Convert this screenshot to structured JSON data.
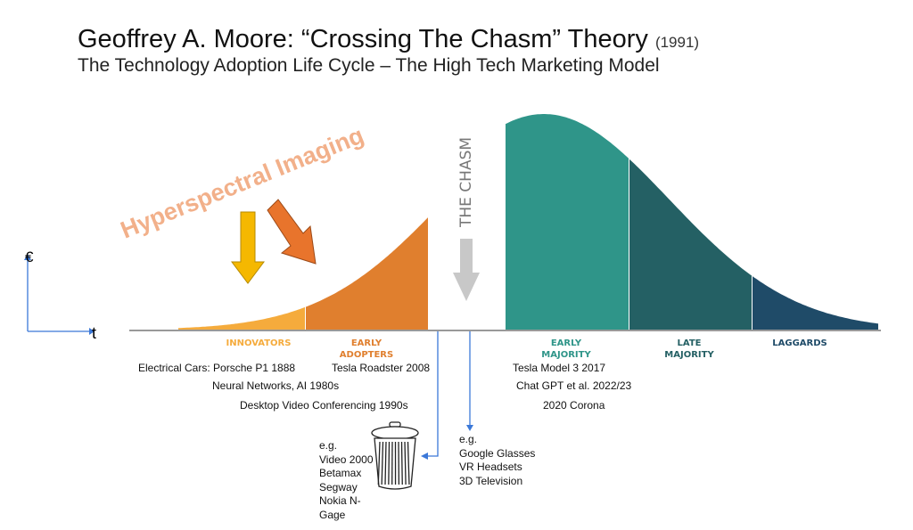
{
  "title": {
    "main": "Geoffrey A. Moore: “Crossing The Chasm” Theory",
    "year": "(1991)",
    "subtitle": "The Technology Adoption Life Cycle – The High Tech Marketing Model"
  },
  "overlay_text": "Hyperspectral Imaging",
  "chasm_label": "THE CHASM",
  "axes": {
    "y": "€",
    "x": "t"
  },
  "segments": [
    {
      "label1": "INNOVATORS",
      "label2": "",
      "color": "#f5ab3c"
    },
    {
      "label1": "EARLY",
      "label2": "ADOPTERS",
      "color": "#e07f2e"
    },
    {
      "label1": "EARLY",
      "label2": "MAJORITY",
      "color": "#2f9589"
    },
    {
      "label1": "LATE",
      "label2": "MAJORITY",
      "color": "#246064"
    },
    {
      "label1": "LAGGARDS",
      "label2": "",
      "color": "#1f4b68"
    }
  ],
  "examples": [
    "Electrical Cars: Porsche P1 1888",
    "Tesla Roadster 2008",
    "Neural Networks, AI 1980s",
    "Desktop Video Conferencing 1990s",
    "Tesla Model 3 2017",
    "Chat GPT et al. 2022/23",
    "2020 Corona"
  ],
  "failed": [
    "e.g.",
    "Video 2000",
    "Betamax",
    "Segway",
    "Nokia N-Gage",
    "……………"
  ],
  "stuck": [
    "e.g.",
    "Google Glasses",
    "VR Headsets",
    "3D Television"
  ],
  "colors": {
    "arrow_yellow": "#f5b800",
    "arrow_orange": "#e8742c",
    "overlay": "#f2b08a",
    "pointer": "#3b78d8",
    "chasm_arrow": "#c8c8c8"
  }
}
